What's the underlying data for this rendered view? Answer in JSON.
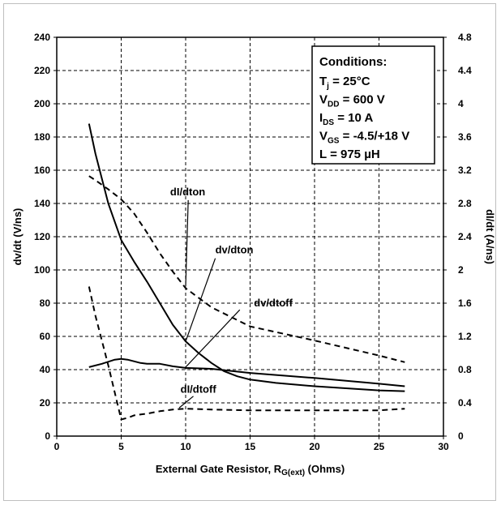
{
  "chart_data": {
    "type": "line",
    "xlabel": "External Gate Resistor, R",
    "xlabel_sub": "G(ext)",
    "xlabel_suffix": " (Ohms)",
    "ylabel_left": "dv/dt (V/ns)",
    "ylabel_right": "dI/dt (A/ns)",
    "xlim": [
      0,
      30
    ],
    "ylim_left": [
      0,
      240
    ],
    "ylim_right": [
      0,
      4.8
    ],
    "x_ticks": [
      0,
      5,
      10,
      15,
      20,
      25,
      30
    ],
    "y_left_ticks": [
      0,
      20,
      40,
      60,
      80,
      100,
      120,
      140,
      160,
      180,
      200,
      220,
      240
    ],
    "y_right_ticks": [
      "0",
      "0.4",
      "0.8",
      "1.2",
      "1.6",
      "2",
      "2.4",
      "2.8",
      "3.2",
      "3.6",
      "4",
      "4.4",
      "4.8"
    ],
    "grid": true,
    "series": [
      {
        "name": "dv/dton",
        "axis": "left",
        "style": "solid",
        "points": [
          [
            2.5,
            188
          ],
          [
            3,
            170
          ],
          [
            4,
            140
          ],
          [
            5,
            118
          ],
          [
            6,
            105
          ],
          [
            7,
            93
          ],
          [
            8,
            80
          ],
          [
            9,
            67
          ],
          [
            10,
            57
          ],
          [
            11,
            50
          ],
          [
            12,
            44
          ],
          [
            13,
            39
          ],
          [
            14,
            36
          ],
          [
            15,
            34
          ],
          [
            17,
            32
          ],
          [
            20,
            30
          ],
          [
            25,
            27.5
          ],
          [
            27,
            27
          ]
        ]
      },
      {
        "name": "dv/dtoff",
        "axis": "left",
        "style": "solid",
        "points": [
          [
            2.5,
            41.5
          ],
          [
            3.5,
            43.5
          ],
          [
            4.5,
            46
          ],
          [
            5,
            46.5
          ],
          [
            5.5,
            46
          ],
          [
            6.5,
            44
          ],
          [
            7,
            43.5
          ],
          [
            8,
            43.5
          ],
          [
            9,
            42
          ],
          [
            10,
            41
          ],
          [
            12,
            40.5
          ],
          [
            15,
            38
          ],
          [
            20,
            35
          ],
          [
            25,
            31.5
          ],
          [
            27,
            30
          ]
        ]
      },
      {
        "name": "dI/dton",
        "axis": "right",
        "style": "dashed",
        "points": [
          [
            2.5,
            3.13
          ],
          [
            3,
            3.08
          ],
          [
            4,
            2.97
          ],
          [
            5,
            2.85
          ],
          [
            6,
            2.68
          ],
          [
            7,
            2.45
          ],
          [
            8,
            2.2
          ],
          [
            9,
            1.98
          ],
          [
            10,
            1.78
          ],
          [
            12,
            1.55
          ],
          [
            15,
            1.32
          ],
          [
            20,
            1.15
          ],
          [
            25,
            0.97
          ],
          [
            27,
            0.89
          ]
        ]
      },
      {
        "name": "dI/dtoff",
        "axis": "right",
        "style": "dashed",
        "points": [
          [
            2.5,
            1.8
          ],
          [
            3,
            1.45
          ],
          [
            4,
            0.85
          ],
          [
            5,
            0.2
          ],
          [
            5.5,
            0.22
          ],
          [
            6,
            0.25
          ],
          [
            7,
            0.27
          ],
          [
            8,
            0.3
          ],
          [
            9,
            0.32
          ],
          [
            10,
            0.33
          ],
          [
            12,
            0.32
          ],
          [
            15,
            0.31
          ],
          [
            20,
            0.31
          ],
          [
            25,
            0.31
          ],
          [
            27,
            0.33
          ]
        ]
      }
    ],
    "annotations": [
      {
        "label": "dI/dton",
        "text_at": [
          8.8,
          145
        ],
        "line_from": [
          10.2,
          142
        ],
        "line_to": [
          10,
          90
        ]
      },
      {
        "label": "dv/dton",
        "text_at": [
          12.3,
          110
        ],
        "line_from": [
          12.3,
          107
        ],
        "line_to": [
          10,
          57
        ]
      },
      {
        "label": "dv/dtoff",
        "text_at": [
          15.3,
          78
        ],
        "line_from": [
          14.2,
          76
        ],
        "line_to": [
          10,
          41.5
        ]
      },
      {
        "label": "dI/dtoff",
        "text_at": [
          9.6,
          26
        ],
        "line_from": [
          10.6,
          24
        ],
        "line_to": [
          9.5,
          17
        ]
      }
    ],
    "conditions": {
      "title": "Conditions:",
      "lines": [
        {
          "main": "T",
          "sub": "j",
          "rest": " = 25°C"
        },
        {
          "main": "V",
          "sub": "DD",
          "rest": " = 600 V"
        },
        {
          "main": "I",
          "sub": "DS",
          "rest": " = 10 A"
        },
        {
          "main": "V",
          "sub": "GS",
          "rest": " = -4.5/+18 V"
        },
        {
          "main": "L",
          "sub": "",
          "rest": " = 975 µH"
        }
      ]
    }
  }
}
